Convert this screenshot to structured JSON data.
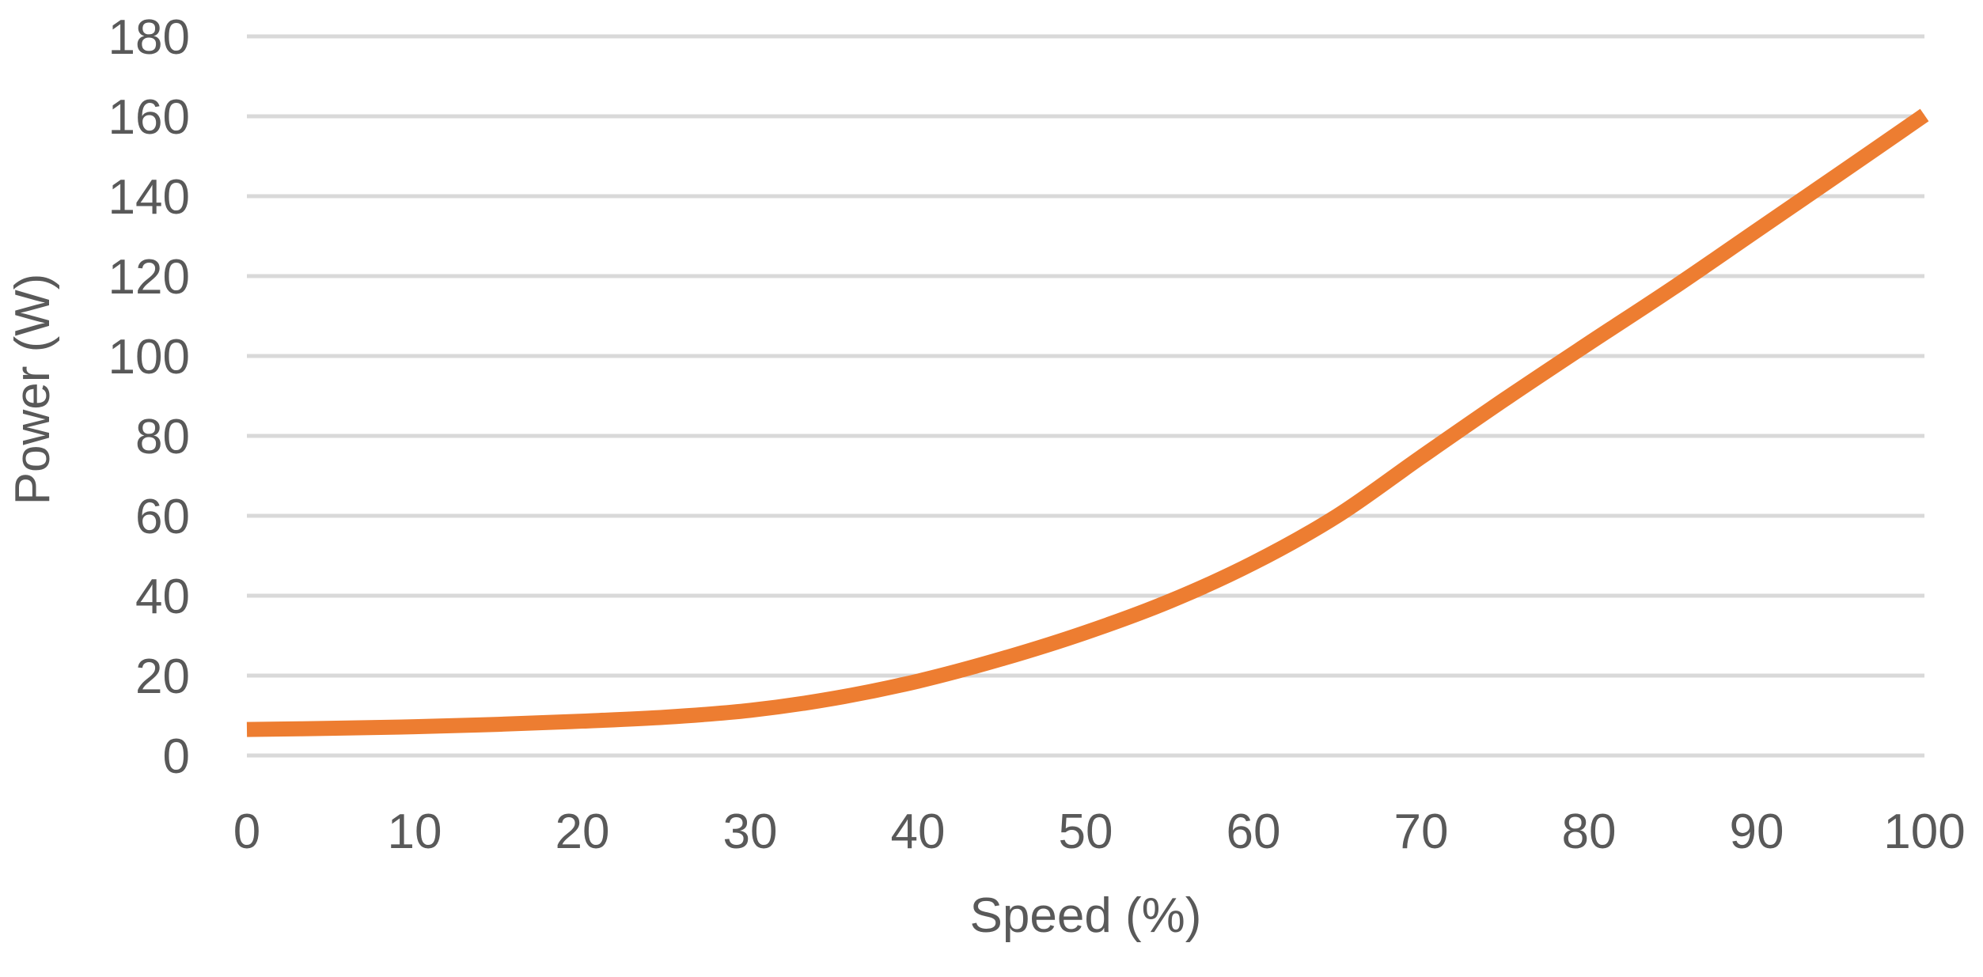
{
  "chart_data": {
    "type": "line",
    "title": "",
    "xlabel": "Speed (%)",
    "ylabel": "Power (W)",
    "xlim": [
      0,
      100
    ],
    "ylim": [
      0,
      180
    ],
    "x_ticks": [
      0,
      10,
      20,
      30,
      40,
      50,
      60,
      70,
      80,
      90,
      100
    ],
    "y_ticks": [
      0,
      20,
      40,
      60,
      80,
      100,
      120,
      140,
      160,
      180
    ],
    "x_tick_labels": [
      "0",
      "10",
      "20",
      "30",
      "40",
      "50",
      "60",
      "70",
      "80",
      "90",
      "100"
    ],
    "y_tick_labels": [
      "0",
      "20",
      "40",
      "60",
      "80",
      "100",
      "120",
      "140",
      "160",
      "180"
    ],
    "grid": "horizontal",
    "legend": "none",
    "series": [
      {
        "x": [
          0,
          5,
          10,
          15,
          20,
          25,
          30,
          35,
          40,
          45,
          50,
          55,
          60,
          65,
          70,
          75,
          80,
          85,
          90,
          95,
          100
        ],
        "y": [
          6.5,
          6.8,
          7.2,
          7.8,
          8.6,
          9.6,
          11.3,
          14.3,
          18.6,
          24.2,
          30.8,
          38.6,
          48.2,
          60.0,
          74.7,
          89.2,
          103.2,
          117.0,
          131.4,
          145.8,
          160.3
        ],
        "color": "#ED7D31"
      }
    ],
    "colors": {
      "line": "#ED7D31",
      "grid": "#D9D9D9",
      "text": "#595959"
    }
  }
}
